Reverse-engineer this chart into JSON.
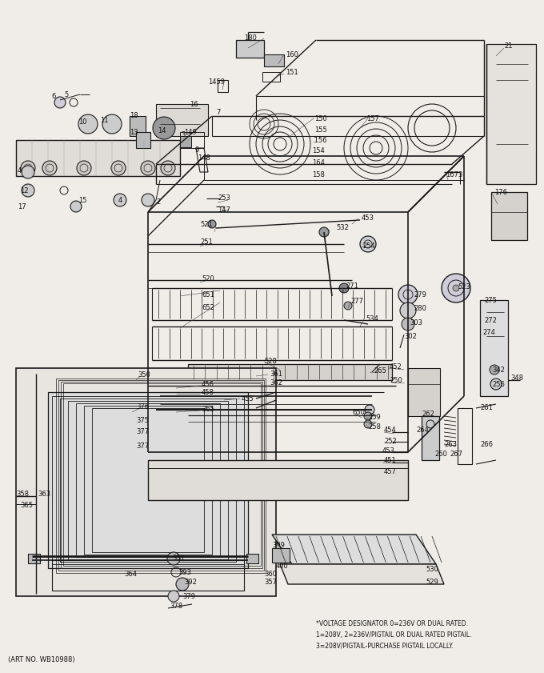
{
  "background_color": "#f0ede8",
  "line_color": "#1a1a1a",
  "text_color": "#111111",
  "bottom_left_text": "(ART NO. WB10988)",
  "footnote_lines": [
    "*VOLTAGE DESIGNATOR 0=236V OR DUAL RATED.",
    "1=208V, 2=236V/PIGTAIL OR DUAL RATED PIGTAIL.",
    "3=208V/PIGTAIL-PURCHASE PIGTAIL LOCALLY."
  ],
  "figsize": [
    6.8,
    8.41
  ],
  "dpi": 100
}
